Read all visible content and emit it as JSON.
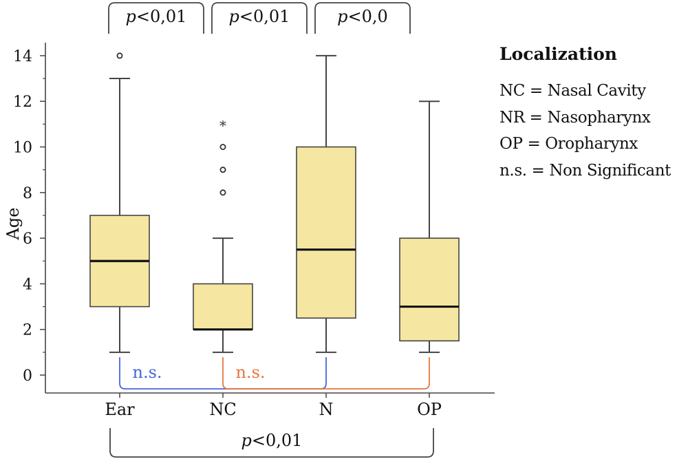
{
  "chart_data": {
    "type": "box",
    "ylabel": "Age",
    "xlabel": "",
    "ylim": [
      -0.7,
      15
    ],
    "yticks": [
      0,
      2,
      4,
      6,
      8,
      10,
      12,
      14
    ],
    "minor_yticks": [
      1,
      3,
      5,
      7,
      9,
      11,
      13
    ],
    "grid": false,
    "box_color": "#f5e6a1",
    "categories": [
      "Ear",
      "NC",
      "N",
      "OP"
    ],
    "boxes": [
      {
        "category": "Ear",
        "whisker_low": 1,
        "q1": 3,
        "median": 5,
        "q3": 7,
        "whisker_high": 13,
        "outliers": [
          {
            "value": 14,
            "marker": "circle"
          }
        ]
      },
      {
        "category": "NC",
        "whisker_low": 1,
        "q1": 2,
        "median": 2,
        "q3": 4,
        "whisker_high": 6,
        "outliers": [
          {
            "value": 8,
            "marker": "circle"
          },
          {
            "value": 9,
            "marker": "circle"
          },
          {
            "value": 10,
            "marker": "circle"
          },
          {
            "value": 11,
            "marker": "star"
          }
        ]
      },
      {
        "category": "N",
        "whisker_low": 1,
        "q1": 2.5,
        "median": 5.5,
        "q3": 10,
        "whisker_high": 14,
        "outliers": []
      },
      {
        "category": "OP",
        "whisker_low": 1,
        "q1": 1.5,
        "median": 3,
        "q3": 6,
        "whisker_high": 12,
        "outliers": []
      }
    ],
    "top_brackets": [
      {
        "from": "Ear",
        "to": "NC",
        "label": "<0,01"
      },
      {
        "from": "NC",
        "to": "N",
        "label": "<0,01"
      },
      {
        "from": "N",
        "to": "OP",
        "label": "<0,0"
      }
    ],
    "inner_brackets": [
      {
        "from": "Ear",
        "to": "N",
        "label": "n.s.",
        "color": "#4466dd"
      },
      {
        "from": "NC",
        "to": "OP",
        "label": "n.s.",
        "color": "#e8763a"
      }
    ],
    "bottom_bracket": {
      "from": "Ear",
      "to": "OP",
      "label": "<0,01"
    },
    "p_symbol": "p"
  },
  "legend": {
    "title": "Localization",
    "items": [
      "NC = Nasal Cavity",
      "NR = Nasopharynx",
      "OP = Oropharynx",
      "n.s. = Non Significant"
    ]
  }
}
